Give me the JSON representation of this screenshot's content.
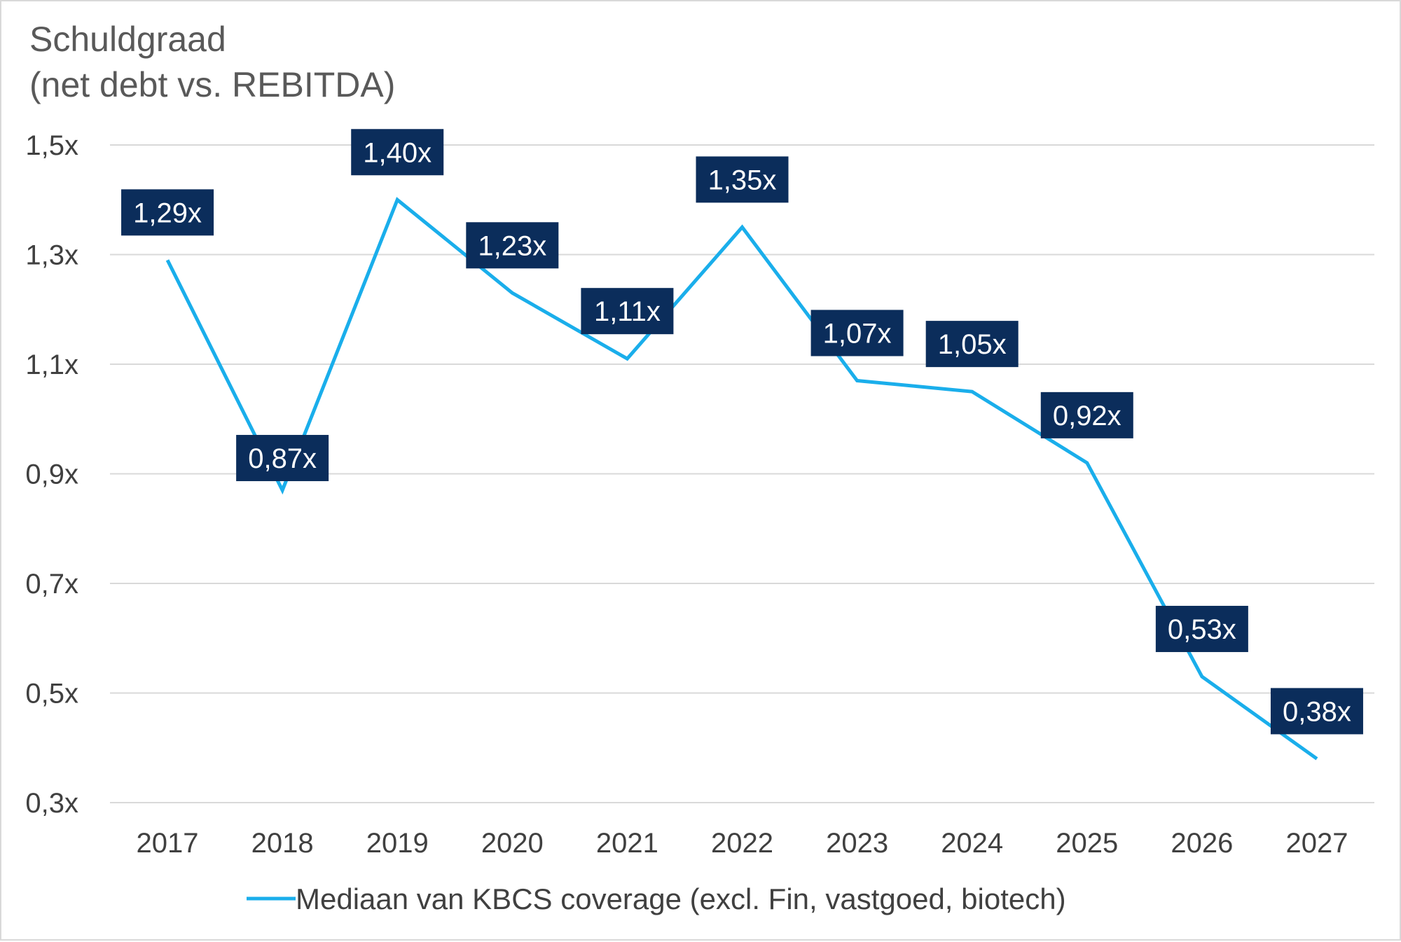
{
  "chart_data": {
    "type": "line",
    "title": [
      "Schuldgraad",
      "(net debt vs. REBITDA)"
    ],
    "categories": [
      "2017",
      "2018",
      "2019",
      "2020",
      "2021",
      "2022",
      "2023",
      "2024",
      "2025",
      "2026",
      "2027"
    ],
    "series": [
      {
        "name": "Mediaan van KBCS coverage (excl. Fin, vastgoed, biotech)",
        "values": [
          1.29,
          0.87,
          1.4,
          1.23,
          1.11,
          1.35,
          1.07,
          1.05,
          0.92,
          0.53,
          0.38
        ],
        "labels": [
          "1,29x",
          "0,87x",
          "1,40x",
          "1,23x",
          "1,11x",
          "1,35x",
          "1,07x",
          "1,05x",
          "0,92x",
          "0,53x",
          "0,38x"
        ],
        "color": "#1AAEEB"
      }
    ],
    "label_style": {
      "background": "#0B2D5B",
      "text_color": "#FFFFFF",
      "placement": "above or below each point"
    },
    "y_ticks": [
      0.3,
      0.5,
      0.7,
      0.9,
      1.1,
      1.3,
      1.5
    ],
    "y_tick_labels": [
      "0,3x",
      "0,5x",
      "0,7x",
      "0,9x",
      "1,1x",
      "1,3x",
      "1,5x"
    ],
    "ylim": [
      0.3,
      1.5
    ],
    "xlabel": "",
    "ylabel": "",
    "grid": "horizontal",
    "gridline_color": "#d9d9d9",
    "legend_position": "bottom-center"
  }
}
